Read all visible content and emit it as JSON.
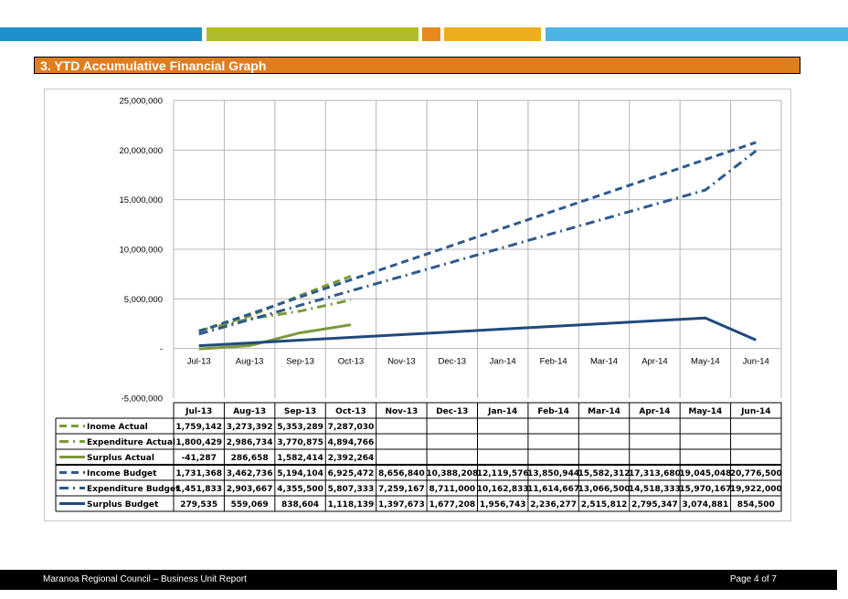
{
  "header": {
    "stripes": [
      {
        "color": "#1F90C9"
      },
      {
        "color": "#B2BC2A"
      },
      {
        "color": "#E8891F"
      },
      {
        "color": "#EDAE1E"
      },
      {
        "color": "#4DB3E5"
      }
    ],
    "section_title": "3.  YTD Accumulative Financial Graph",
    "section_color": "#E07E1E"
  },
  "footer": {
    "left": "Maranoa Regional Council – Business Unit Report",
    "right": "Page 4 of 7"
  },
  "chart_data": {
    "type": "line",
    "title": "",
    "categories": [
      "Jul-13",
      "Aug-13",
      "Sep-13",
      "Oct-13",
      "Nov-13",
      "Dec-13",
      "Jan-14",
      "Feb-14",
      "Mar-14",
      "Apr-14",
      "May-14",
      "Jun-14"
    ],
    "ylim": [
      -5000000,
      25000000
    ],
    "yticks": [
      {
        "value": 25000000,
        "label": "25,000,000"
      },
      {
        "value": 20000000,
        "label": "20,000,000"
      },
      {
        "value": 15000000,
        "label": "15,000,000"
      },
      {
        "value": 10000000,
        "label": "10,000,000"
      },
      {
        "value": 5000000,
        "label": "5,000,000"
      },
      {
        "value": 0,
        "label": "-"
      },
      {
        "value": -5000000,
        "label": "-5,000,000"
      }
    ],
    "grid": true,
    "legend": "data-table",
    "series": [
      {
        "name": "Inome Actual",
        "color": "#7A9A3A",
        "dash": "dash",
        "values": [
          1759142,
          3273392,
          5353289,
          7287030,
          null,
          null,
          null,
          null,
          null,
          null,
          null,
          null
        ],
        "labels": [
          "1,759,142",
          "3,273,392",
          "5,353,289",
          "7,287,030",
          "",
          "",
          "",
          "",
          "",
          "",
          "",
          ""
        ]
      },
      {
        "name": "Expenditure Actual",
        "color": "#7A9A3A",
        "dash": "dashdot",
        "values": [
          1800429,
          2986734,
          3770875,
          4894766,
          null,
          null,
          null,
          null,
          null,
          null,
          null,
          null
        ],
        "labels": [
          "1,800,429",
          "2,986,734",
          "3,770,875",
          "4,894,766",
          "",
          "",
          "",
          "",
          "",
          "",
          "",
          ""
        ]
      },
      {
        "name": "Surplus Actual",
        "color": "#7A9A3A",
        "dash": "solid",
        "values": [
          -41287,
          286658,
          1582414,
          2392264,
          null,
          null,
          null,
          null,
          null,
          null,
          null,
          null
        ],
        "labels": [
          "-41,287",
          "286,658",
          "1,582,414",
          "2,392,264",
          "",
          "",
          "",
          "",
          "",
          "",
          "",
          ""
        ]
      },
      {
        "name": "Income Budget",
        "color": "#2E5A8C",
        "dash": "dash",
        "values": [
          1731368,
          3462736,
          5194104,
          6925472,
          8656840,
          10388208,
          12119576,
          13850944,
          15582312,
          17313680,
          19045048,
          20776500
        ],
        "labels": [
          "1,731,368",
          "3,462,736",
          "5,194,104",
          "6,925,472",
          "8,656,840",
          "10,388,208",
          "12,119,576",
          "13,850,944",
          "15,582,312",
          "17,313,680",
          "19,045,048",
          "20,776,500"
        ]
      },
      {
        "name": "Expenditure Budget",
        "color": "#2E5A8C",
        "dash": "dashdot",
        "values": [
          1451833,
          2903667,
          4355500,
          5807333,
          7259167,
          8711000,
          10162833,
          11614667,
          13066500,
          14518333,
          15970167,
          19922000
        ],
        "labels": [
          "1,451,833",
          "2,903,667",
          "4,355,500",
          "5,807,333",
          "7,259,167",
          "8,711,000",
          "10,162,833",
          "11,614,667",
          "13,066,500",
          "14,518,333",
          "15,970,167",
          "19,922,000"
        ]
      },
      {
        "name": "Surplus Budget",
        "color": "#1F4A7E",
        "dash": "solid",
        "values": [
          279535,
          559069,
          838604,
          1118139,
          1397673,
          1677208,
          1956743,
          2236277,
          2515812,
          2795347,
          3074881,
          854500
        ],
        "labels": [
          "279,535",
          "559,069",
          "838,604",
          "1,118,139",
          "1,397,673",
          "1,677,208",
          "1,956,743",
          "2,236,277",
          "2,515,812",
          "2,795,347",
          "3,074,881",
          "854,500"
        ]
      }
    ]
  }
}
